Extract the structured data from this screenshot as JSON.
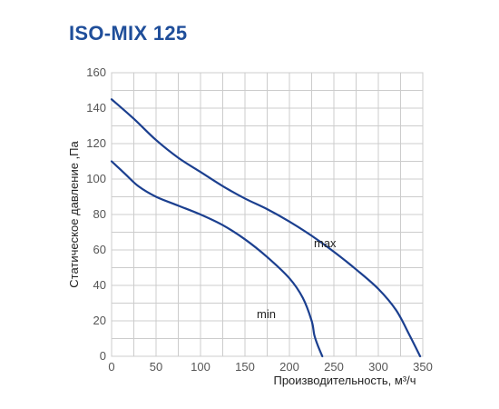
{
  "title": "ISO-MIX 125",
  "colors": {
    "title": "#1f4e9a",
    "line": "#1b3f8f",
    "grid": "#cccccc",
    "label": "#555555"
  },
  "chart_data": {
    "type": "line",
    "title": "ISO-MIX 125",
    "xlabel": "Производительность, м³/ч",
    "ylabel": "Статическое давление ,Па",
    "xlim": [
      0,
      350
    ],
    "ylim": [
      0,
      160
    ],
    "xticks": [
      0,
      50,
      100,
      150,
      200,
      250,
      300,
      350
    ],
    "yticks": [
      0,
      20,
      40,
      60,
      80,
      100,
      120,
      140,
      160
    ],
    "grid": true,
    "series": [
      {
        "name": "max",
        "x": [
          0,
          25,
          50,
          75,
          100,
          125,
          150,
          175,
          200,
          225,
          250,
          275,
          300,
          320,
          335,
          347
        ],
        "y": [
          145,
          134,
          122,
          112,
          104,
          96,
          89,
          83,
          76,
          68,
          59,
          49,
          38,
          26,
          12,
          0
        ]
      },
      {
        "name": "min",
        "x": [
          0,
          15,
          30,
          50,
          75,
          100,
          125,
          150,
          175,
          200,
          215,
          225,
          228,
          232,
          237
        ],
        "y": [
          110,
          103,
          96,
          90,
          85,
          80,
          74,
          66,
          56,
          44,
          33,
          20,
          12,
          6,
          0
        ]
      }
    ]
  }
}
